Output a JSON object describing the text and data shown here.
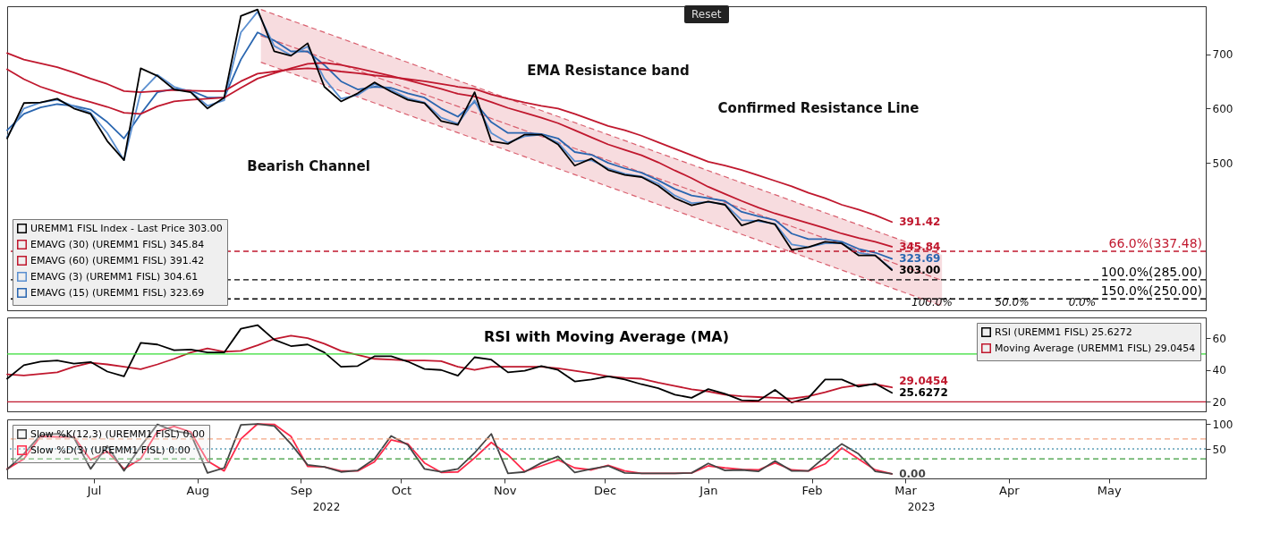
{
  "chart_data": [
    {
      "type": "line",
      "x": [
        "2022-06-20",
        "2022-06-25",
        "2022-06-30",
        "2022-07-05",
        "2022-07-10",
        "2022-07-15",
        "2022-07-20",
        "2022-07-25",
        "2022-07-30",
        "2022-08-04",
        "2022-08-09",
        "2022-08-14",
        "2022-08-19",
        "2022-08-24",
        "2022-08-29",
        "2022-09-03",
        "2022-09-08",
        "2022-09-13",
        "2022-09-18",
        "2022-09-23",
        "2022-09-28",
        "2022-10-03",
        "2022-10-08",
        "2022-10-13",
        "2022-10-18",
        "2022-10-23",
        "2022-10-28",
        "2022-11-02",
        "2022-11-07",
        "2022-11-12",
        "2022-11-17",
        "2022-11-22",
        "2022-11-27",
        "2022-12-02",
        "2022-12-07",
        "2022-12-12",
        "2022-12-17",
        "2022-12-22",
        "2022-12-27",
        "2023-01-01",
        "2023-01-06",
        "2023-01-11",
        "2023-01-16",
        "2023-01-21",
        "2023-01-26",
        "2023-01-31",
        "2023-02-05",
        "2023-02-10",
        "2023-02-15",
        "2023-02-20",
        "2023-02-25",
        "2023-03-02",
        "2023-03-07",
        "2023-03-12"
      ],
      "xlim": [
        "2022-06-20",
        "2023-06-14"
      ],
      "ylim": [
        229,
        788
      ],
      "yticks": [
        500,
        600,
        700
      ],
      "grid": false,
      "legend": "bottom left",
      "tick_labels": "y",
      "series": [
        {
          "name": "UREMM1 FISL Index - Last Price 303.00",
          "color": "#000000",
          "values": [
            545,
            610,
            611,
            618,
            600,
            590,
            540,
            505,
            674,
            660,
            635,
            630,
            600,
            620,
            770,
            782,
            705,
            697,
            720,
            640,
            613,
            628,
            648,
            631,
            616,
            610,
            577,
            570,
            630,
            540,
            535,
            552,
            552,
            534,
            495,
            508,
            487,
            478,
            474,
            458,
            435,
            422,
            429,
            423,
            385,
            395,
            387,
            340,
            345,
            355,
            352,
            330,
            330,
            303.0
          ],
          "value_labels": [
            null,
            null,
            null,
            null,
            null,
            null,
            null,
            null,
            null,
            null,
            null,
            null,
            null,
            null,
            null,
            null,
            null,
            null,
            null,
            null,
            null,
            null,
            null,
            null,
            null,
            null,
            null,
            null,
            null,
            null,
            null,
            null,
            null,
            null,
            null,
            null,
            null,
            null,
            null,
            null,
            null,
            null,
            null,
            null,
            null,
            null,
            null,
            null,
            null,
            null,
            null,
            null,
            null,
            "303.00"
          ]
        },
        {
          "name": "EMAVG (30) (UREMM1 FISL) 345.84",
          "color": "#c0182e",
          "values": [
            672,
            654,
            640,
            630,
            620,
            612,
            603,
            592,
            590,
            604,
            613,
            616,
            618,
            620,
            638,
            655,
            665,
            674,
            682,
            684,
            680,
            674,
            667,
            660,
            652,
            644,
            636,
            627,
            622,
            612,
            601,
            592,
            583,
            573,
            560,
            547,
            534,
            524,
            514,
            501,
            486,
            472,
            456,
            443,
            430,
            418,
            407,
            398,
            389,
            380,
            370,
            362,
            355,
            345.84
          ],
          "value_labels": [
            null,
            null,
            null,
            null,
            null,
            null,
            null,
            null,
            null,
            null,
            null,
            null,
            null,
            null,
            null,
            null,
            null,
            null,
            null,
            null,
            null,
            null,
            null,
            null,
            null,
            null,
            null,
            null,
            null,
            null,
            null,
            null,
            null,
            null,
            null,
            null,
            null,
            null,
            null,
            null,
            null,
            null,
            null,
            null,
            null,
            null,
            null,
            null,
            null,
            null,
            null,
            null,
            null,
            "345.84"
          ]
        },
        {
          "name": "EMAVG (60) (UREMM1 FISL) 391.42",
          "color": "#c0182e",
          "values": [
            702,
            690,
            683,
            676,
            666,
            655,
            645,
            632,
            630,
            632,
            634,
            633,
            632,
            632,
            650,
            664,
            668,
            672,
            674,
            672,
            668,
            665,
            661,
            658,
            654,
            650,
            645,
            640,
            636,
            626,
            618,
            611,
            605,
            600,
            590,
            579,
            568,
            560,
            550,
            538,
            526,
            514,
            502,
            495,
            487,
            477,
            467,
            457,
            445,
            435,
            423,
            414,
            404,
            391.42
          ],
          "value_labels": [
            null,
            null,
            null,
            null,
            null,
            null,
            null,
            null,
            null,
            null,
            null,
            null,
            null,
            null,
            null,
            null,
            null,
            null,
            null,
            null,
            null,
            null,
            null,
            null,
            null,
            null,
            null,
            null,
            null,
            null,
            null,
            null,
            null,
            null,
            null,
            null,
            null,
            null,
            null,
            null,
            null,
            null,
            null,
            null,
            null,
            null,
            null,
            null,
            null,
            null,
            null,
            null,
            null,
            "391.42"
          ]
        },
        {
          "name": "EMAVG (3) (UREMM1 FISL) 304.61",
          "color": "#5b8fd0",
          "values": [
            548,
            600,
            611,
            616,
            604,
            592,
            555,
            505,
            630,
            662,
            640,
            631,
            605,
            615,
            740,
            778,
            715,
            698,
            714,
            655,
            618,
            625,
            645,
            634,
            619,
            611,
            583,
            572,
            615,
            555,
            537,
            549,
            552,
            537,
            503,
            505,
            490,
            480,
            475,
            462,
            440,
            426,
            428,
            424,
            395,
            393,
            388,
            350,
            345,
            352,
            352,
            335,
            330,
            304.61
          ]
        },
        {
          "name": "EMAVG (15) (UREMM1 FISL) 323.69",
          "color": "#2a66b0",
          "values": [
            560,
            590,
            602,
            608,
            605,
            598,
            575,
            545,
            590,
            630,
            636,
            633,
            620,
            620,
            690,
            740,
            725,
            705,
            705,
            680,
            650,
            635,
            640,
            638,
            628,
            620,
            600,
            585,
            612,
            575,
            555,
            555,
            553,
            545,
            520,
            515,
            500,
            490,
            482,
            468,
            452,
            440,
            435,
            430,
            410,
            402,
            395,
            370,
            360,
            360,
            355,
            342,
            335,
            323.69
          ],
          "value_labels": [
            null,
            null,
            null,
            null,
            null,
            null,
            null,
            null,
            null,
            null,
            null,
            null,
            null,
            null,
            null,
            null,
            null,
            null,
            null,
            null,
            null,
            null,
            null,
            null,
            null,
            null,
            null,
            null,
            null,
            null,
            null,
            null,
            null,
            null,
            null,
            null,
            null,
            null,
            null,
            null,
            null,
            null,
            null,
            null,
            null,
            null,
            null,
            null,
            null,
            null,
            null,
            null,
            null,
            "323.69"
          ]
        },
        {
          "color": "#d9606f",
          "line_style": "dashed",
          "x": [
            "2022-09-04",
            "2023-03-27"
          ],
          "values": [
            734,
            284
          ],
          "lower": [
            685,
            237
          ],
          "upper": [
            782,
            331
          ]
        }
      ],
      "ref_lines": [
        {
          "axis": "y",
          "value": 337.48,
          "label": "66.0%(337.48)",
          "color": "#c0182e",
          "line_style": "dashed"
        },
        {
          "axis": "y",
          "value": 285,
          "label": "100.0%(285.00)",
          "color": "#000000",
          "line_style": "dashed"
        },
        {
          "axis": "y",
          "value": 250,
          "label": "150.0%(250.00)",
          "color": "#000000",
          "line_style": "dashed"
        }
      ],
      "annotations": [
        "EMA Resistance band",
        "Confirmed Resistance Line",
        "Bearish Channel",
        {
          "text": "100.0%",
          "x": "2023-03-24",
          "y": 244
        },
        {
          "text": "50.0%",
          "x": "2023-04-17",
          "y": 244
        },
        {
          "text": "0.0%",
          "x": "2023-05-08",
          "y": 244
        },
        "Reset"
      ]
    },
    {
      "type": "line",
      "title": "RSI with Moving Average (MA)",
      "x": [
        "2022-06-20",
        "2022-06-25",
        "2022-06-30",
        "2022-07-05",
        "2022-07-10",
        "2022-07-15",
        "2022-07-20",
        "2022-07-25",
        "2022-07-30",
        "2022-08-04",
        "2022-08-09",
        "2022-08-14",
        "2022-08-19",
        "2022-08-24",
        "2022-08-29",
        "2022-09-03",
        "2022-09-08",
        "2022-09-13",
        "2022-09-18",
        "2022-09-23",
        "2022-09-28",
        "2022-10-03",
        "2022-10-08",
        "2022-10-13",
        "2022-10-18",
        "2022-10-23",
        "2022-10-28",
        "2022-11-02",
        "2022-11-07",
        "2022-11-12",
        "2022-11-17",
        "2022-11-22",
        "2022-11-27",
        "2022-12-02",
        "2022-12-07",
        "2022-12-12",
        "2022-12-17",
        "2022-12-22",
        "2022-12-27",
        "2023-01-01",
        "2023-01-06",
        "2023-01-11",
        "2023-01-16",
        "2023-01-21",
        "2023-01-26",
        "2023-01-31",
        "2023-02-05",
        "2023-02-10",
        "2023-02-15",
        "2023-02-20",
        "2023-02-25",
        "2023-03-02",
        "2023-03-07",
        "2023-03-12"
      ],
      "xlim": [
        "2022-06-20",
        "2023-06-14"
      ],
      "ylim": [
        14,
        73
      ],
      "yticks": [
        20,
        40,
        60
      ],
      "grid": false,
      "legend": "top right",
      "tick_labels": "y",
      "series": [
        {
          "name": "RSI (UREMM1 FISL) 25.6272",
          "color": "#000000",
          "values": [
            34.5,
            43,
            45.3,
            46,
            44,
            45,
            39,
            36,
            57,
            56,
            52.4,
            52.8,
            51,
            51,
            65.9,
            68.2,
            59,
            55,
            56,
            51,
            42,
            42.5,
            48.6,
            48.6,
            45.3,
            40.6,
            40,
            36.4,
            48,
            46.5,
            38.5,
            39.5,
            42.5,
            40,
            32.8,
            34,
            36,
            34,
            31,
            28.5,
            24.5,
            22.5,
            28,
            25,
            21,
            20.6,
            27.5,
            19.5,
            22.5,
            34,
            34,
            29.5,
            31.4,
            25.6272
          ],
          "value_labels": [
            null,
            null,
            null,
            null,
            null,
            null,
            null,
            null,
            null,
            null,
            null,
            null,
            null,
            null,
            null,
            null,
            null,
            null,
            null,
            null,
            null,
            null,
            null,
            null,
            null,
            null,
            null,
            null,
            null,
            null,
            null,
            null,
            null,
            null,
            null,
            null,
            null,
            null,
            null,
            null,
            null,
            null,
            null,
            null,
            null,
            null,
            null,
            null,
            null,
            null,
            null,
            null,
            null,
            "25.6272"
          ]
        },
        {
          "name": "Moving Average (UREMM1 FISL) 29.0454",
          "color": "#c0182e",
          "values": [
            37.2,
            36.5,
            37.5,
            38.5,
            42,
            44.5,
            43.5,
            42,
            40.5,
            43.5,
            47,
            51,
            53.5,
            51.5,
            52,
            55.5,
            59.5,
            61.5,
            60,
            56.5,
            52,
            49.5,
            47,
            46.5,
            46,
            46,
            45.5,
            42,
            40,
            42,
            42,
            42,
            42,
            41,
            39.5,
            38,
            36,
            35,
            34.5,
            32,
            30,
            27.8,
            26.5,
            24.5,
            23.5,
            23,
            22.5,
            22,
            23.5,
            26,
            29,
            30.5,
            31,
            29.0454
          ],
          "value_labels": [
            null,
            null,
            null,
            null,
            null,
            null,
            null,
            null,
            null,
            null,
            null,
            null,
            null,
            null,
            null,
            null,
            null,
            null,
            null,
            null,
            null,
            null,
            null,
            null,
            null,
            null,
            null,
            null,
            null,
            null,
            null,
            null,
            null,
            null,
            null,
            null,
            null,
            null,
            null,
            null,
            null,
            null,
            null,
            null,
            null,
            null,
            null,
            null,
            null,
            null,
            null,
            null,
            null,
            "29.0454"
          ]
        }
      ],
      "ref_lines": [
        {
          "axis": "y",
          "value": 50,
          "color": "#33dd33",
          "line_style": "solid"
        },
        {
          "axis": "y",
          "value": 20,
          "color": "#c0182e",
          "line_style": "solid"
        }
      ]
    },
    {
      "type": "line",
      "x": [
        "2022-06-20",
        "2022-06-25",
        "2022-06-30",
        "2022-07-05",
        "2022-07-10",
        "2022-07-15",
        "2022-07-20",
        "2022-07-25",
        "2022-07-30",
        "2022-08-04",
        "2022-08-09",
        "2022-08-14",
        "2022-08-19",
        "2022-08-24",
        "2022-08-29",
        "2022-09-03",
        "2022-09-08",
        "2022-09-13",
        "2022-09-18",
        "2022-09-23",
        "2022-09-28",
        "2022-10-03",
        "2022-10-08",
        "2022-10-13",
        "2022-10-18",
        "2022-10-23",
        "2022-10-28",
        "2022-11-02",
        "2022-11-07",
        "2022-11-12",
        "2022-11-17",
        "2022-11-22",
        "2022-11-27",
        "2022-12-02",
        "2022-12-07",
        "2022-12-12",
        "2022-12-17",
        "2022-12-22",
        "2022-12-27",
        "2023-01-01",
        "2023-01-06",
        "2023-01-11",
        "2023-01-16",
        "2023-01-21",
        "2023-01-26",
        "2023-01-31",
        "2023-02-05",
        "2023-02-10",
        "2023-02-15",
        "2023-02-20",
        "2023-02-25",
        "2023-03-02",
        "2023-03-07",
        "2023-03-12"
      ],
      "xlim": [
        "2022-06-20",
        "2023-06-14"
      ],
      "ylim": [
        -9,
        109
      ],
      "yticks": [
        50,
        100
      ],
      "grid": false,
      "legend": "top left",
      "xticks": [
        {
          "value": "2022-07-16",
          "label": "Jul"
        },
        {
          "value": "2022-08-16",
          "label": "Aug"
        },
        {
          "value": "2022-09-16",
          "label": "Sep"
        },
        {
          "value": "2022-10-16",
          "label": "Oct"
        },
        {
          "value": "2022-11-16",
          "label": "Nov"
        },
        {
          "value": "2022-12-16",
          "label": "Dec"
        },
        {
          "value": "2023-01-16",
          "label": "Jan"
        },
        {
          "value": "2023-02-16",
          "label": "Feb"
        },
        {
          "value": "2023-03-16",
          "label": "Mar"
        },
        {
          "value": "2023-04-16",
          "label": "Apr"
        },
        {
          "value": "2023-05-16",
          "label": "May"
        }
      ],
      "series": [
        {
          "name": "Slow %K(12,3) (UREMM1 FISL) 0.00",
          "color": "#444444",
          "values": [
            9,
            40,
            78,
            80,
            72,
            10,
            56,
            6,
            55,
            99,
            86,
            80,
            2,
            12,
            98,
            100,
            96,
            60,
            18,
            14,
            4,
            7,
            30,
            76,
            58,
            10,
            4,
            10,
            42,
            80,
            1,
            4,
            22,
            35,
            3,
            10,
            16,
            2,
            1,
            1,
            1,
            2,
            21,
            7,
            8,
            5,
            26,
            6,
            6,
            34,
            60,
            40,
            5,
            0
          ],
          "value_labels": [
            null,
            null,
            null,
            null,
            null,
            null,
            null,
            null,
            null,
            null,
            null,
            null,
            null,
            null,
            null,
            null,
            null,
            null,
            null,
            null,
            null,
            null,
            null,
            null,
            null,
            null,
            null,
            null,
            null,
            null,
            null,
            null,
            null,
            null,
            null,
            null,
            null,
            null,
            null,
            null,
            null,
            null,
            null,
            null,
            null,
            null,
            null,
            null,
            null,
            null,
            null,
            null,
            null,
            "0.00"
          ]
        },
        {
          "name": "Slow %D(3) (UREMM1 FISL) 0.00",
          "color": "#ff2a4a",
          "values": [
            10,
            30,
            75,
            74,
            74,
            28,
            45,
            10,
            30,
            85,
            95,
            84,
            26,
            6,
            70,
            100,
            99,
            75,
            15,
            14,
            6,
            6,
            24,
            68,
            60,
            22,
            3,
            4,
            32,
            63,
            38,
            5,
            16,
            28,
            12,
            8,
            17,
            6,
            1,
            1,
            1,
            2,
            16,
            12,
            9,
            8,
            22,
            8,
            6,
            20,
            52,
            30,
            8,
            0
          ]
        }
      ],
      "ref_lines": [
        {
          "axis": "y",
          "value": 70,
          "color": "#f4a582",
          "line_style": "dashed"
        },
        {
          "axis": "y",
          "value": 50,
          "color": "#5fa0b8",
          "line_style": "dotted"
        },
        {
          "axis": "y",
          "value": 30,
          "color": "#3a9a3a",
          "line_style": "dashed"
        }
      ],
      "annotations": [
        "2022",
        "2023"
      ]
    }
  ]
}
